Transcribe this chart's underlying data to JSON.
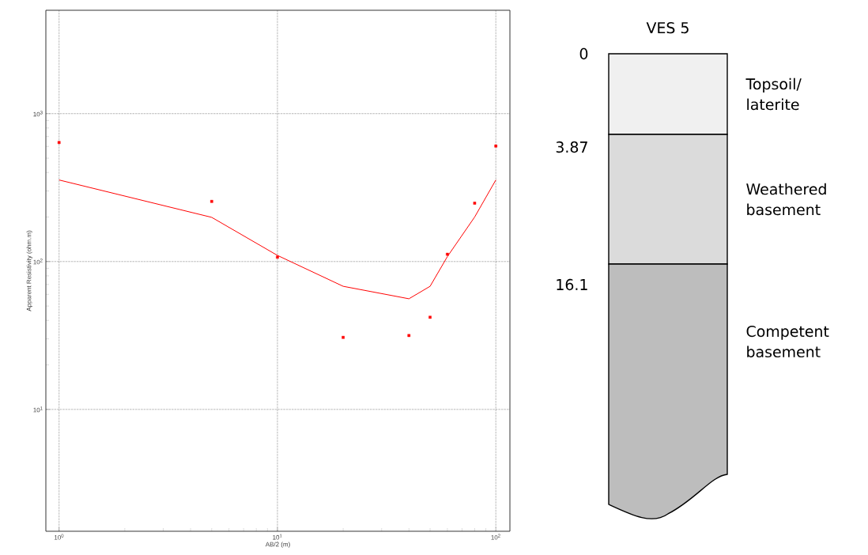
{
  "chart_data": [
    {
      "type": "scatter",
      "xlabel": "AB/2 (m)",
      "ylabel": "Apparent Resistivity (ohm.m)",
      "log": "xy",
      "xlim": [
        0.87,
        116
      ],
      "ylim": [
        1.5,
        5000
      ],
      "xticks": [
        {
          "value": 1,
          "label": "10$^{0}$"
        },
        {
          "value": 10,
          "label": "10$^{1}$"
        },
        {
          "value": 100,
          "label": "10$^{2}$"
        }
      ],
      "yticks": [
        {
          "value": 10,
          "label": "10$^{1}$"
        },
        {
          "value": 100,
          "label": "10$^{2}$"
        },
        {
          "value": 1000,
          "label": "10$^{3}$"
        }
      ],
      "grid": true,
      "series": [
        {
          "type": "scatter",
          "marker": "square",
          "color": "#ff0000",
          "x": [
            1,
            5,
            10,
            20,
            40,
            50,
            60,
            80,
            100
          ],
          "values": [
            638,
            255,
            107,
            30.7,
            31.6,
            42,
            112,
            248,
            604
          ]
        },
        {
          "type": "line",
          "marker": "none",
          "color": "#ff0000",
          "x": [
            1,
            5,
            10,
            20,
            40,
            50,
            60,
            80,
            100
          ],
          "values": [
            356,
            199,
            110,
            68,
            56,
            68,
            108,
            200,
            356
          ]
        }
      ]
    },
    {
      "type": "other",
      "title": "VES 5",
      "categories": [
        "Topsoil/ laterite",
        "Weathered basement",
        "Competent basement"
      ],
      "annotations": [
        "0",
        "3.87",
        "16.1"
      ]
    }
  ]
}
